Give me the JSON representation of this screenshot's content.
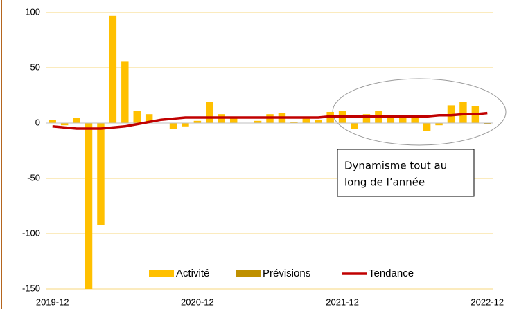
{
  "chart_data": {
    "type": "bar",
    "categories": [
      "2019-12",
      null,
      null,
      null,
      null,
      null,
      null,
      null,
      null,
      null,
      null,
      null,
      "2020-12",
      null,
      null,
      null,
      null,
      null,
      null,
      null,
      null,
      null,
      null,
      null,
      "2021-12",
      null,
      null,
      null,
      null,
      null,
      null,
      null,
      null,
      null,
      null,
      null,
      "2022-12"
    ],
    "series": [
      {
        "name": "Activité",
        "color": "#ffc000",
        "type": "bar",
        "values": [
          3,
          -2,
          5,
          -150,
          -92,
          97,
          56,
          11,
          8,
          0,
          -5,
          -3,
          2,
          19,
          8,
          5,
          0,
          2,
          8,
          9,
          1,
          4,
          3,
          10,
          11,
          -5,
          8,
          11,
          6,
          5,
          5,
          -7,
          -2,
          16,
          19,
          15,
          null
        ]
      },
      {
        "name": "Prévisions",
        "color": "#bf9000",
        "type": "bar",
        "values": [
          null,
          null,
          null,
          null,
          null,
          null,
          null,
          null,
          null,
          null,
          null,
          null,
          null,
          null,
          null,
          null,
          null,
          null,
          null,
          null,
          null,
          null,
          null,
          null,
          null,
          null,
          null,
          null,
          null,
          null,
          null,
          null,
          null,
          null,
          null,
          null,
          -1
        ]
      },
      {
        "name": "Tendance",
        "color": "#c00000",
        "type": "line",
        "values": [
          -3,
          -4,
          -5,
          -5,
          -5,
          -4,
          -3,
          -1,
          1,
          3,
          4,
          5,
          5,
          5,
          5,
          5,
          5,
          5,
          5,
          5,
          5,
          5,
          5,
          6,
          6,
          6,
          6,
          6,
          6,
          6,
          6,
          6,
          7,
          7,
          8,
          8,
          9
        ]
      }
    ],
    "ylim": [
      -150,
      100
    ],
    "yticks": [
      -150,
      -100,
      -50,
      0,
      50,
      100
    ],
    "grid": true,
    "legend": "bottom",
    "annotation_lines": [
      "Dynamisme tout au",
      "long de l’année"
    ]
  }
}
